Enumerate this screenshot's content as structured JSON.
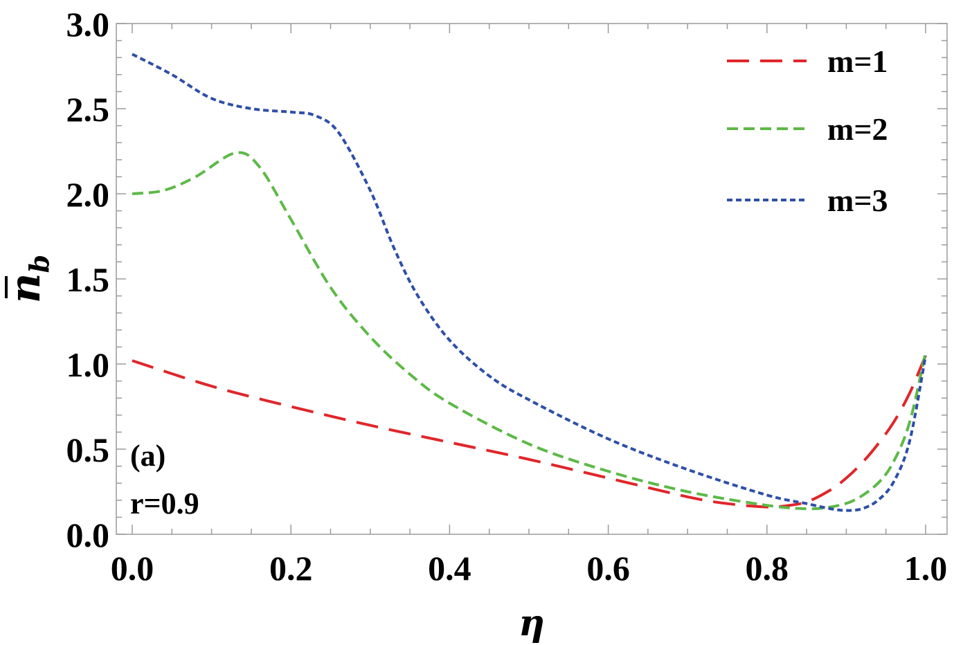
{
  "chart_data": {
    "type": "line",
    "xlabel": "η",
    "ylabel": "n̄_b",
    "xlim": [
      0.0,
      1.0
    ],
    "ylim": [
      0.0,
      3.0
    ],
    "x_ticks": [
      "0.0",
      "0.2",
      "0.4",
      "0.6",
      "0.8",
      "1.0"
    ],
    "y_ticks": [
      "0.0",
      "0.5",
      "1.0",
      "1.5",
      "2.0",
      "2.5",
      "3.0"
    ],
    "grid": false,
    "legend_position": "top-right",
    "annotations": [
      "(a)",
      "r=0.9"
    ],
    "series": [
      {
        "name": "m=1",
        "color": "#e0262a",
        "dash": "long-dash",
        "x": [
          0.0,
          0.1,
          0.2,
          0.3,
          0.4,
          0.5,
          0.6,
          0.7,
          0.75,
          0.8,
          0.82,
          0.85,
          0.88,
          0.9,
          0.92,
          0.94,
          0.96,
          0.98,
          1.0
        ],
        "y": [
          1.02,
          0.87,
          0.75,
          0.64,
          0.54,
          0.44,
          0.33,
          0.22,
          0.18,
          0.16,
          0.165,
          0.19,
          0.26,
          0.33,
          0.42,
          0.53,
          0.66,
          0.83,
          1.05
        ]
      },
      {
        "name": "m=2",
        "color": "#5db947",
        "dash": "medium-dash",
        "x": [
          0.0,
          0.04,
          0.08,
          0.13,
          0.16,
          0.2,
          0.25,
          0.3,
          0.35,
          0.4,
          0.5,
          0.6,
          0.7,
          0.8,
          0.85,
          0.88,
          0.91,
          0.94,
          0.96,
          0.98,
          1.0
        ],
        "y": [
          2.0,
          2.02,
          2.1,
          2.24,
          2.16,
          1.85,
          1.45,
          1.16,
          0.94,
          0.77,
          0.53,
          0.37,
          0.25,
          0.17,
          0.15,
          0.16,
          0.2,
          0.3,
          0.43,
          0.66,
          1.07
        ]
      },
      {
        "name": "m=3",
        "color": "#2e4fa8",
        "dash": "short-dash",
        "x": [
          0.0,
          0.05,
          0.1,
          0.15,
          0.2,
          0.23,
          0.26,
          0.3,
          0.33,
          0.36,
          0.4,
          0.45,
          0.5,
          0.6,
          0.7,
          0.8,
          0.85,
          0.88,
          0.9,
          0.92,
          0.94,
          0.96,
          0.98,
          1.0
        ],
        "y": [
          2.82,
          2.7,
          2.56,
          2.5,
          2.48,
          2.46,
          2.36,
          2.02,
          1.68,
          1.4,
          1.14,
          0.93,
          0.79,
          0.56,
          0.38,
          0.23,
          0.18,
          0.15,
          0.14,
          0.15,
          0.2,
          0.31,
          0.55,
          1.05
        ]
      }
    ]
  }
}
